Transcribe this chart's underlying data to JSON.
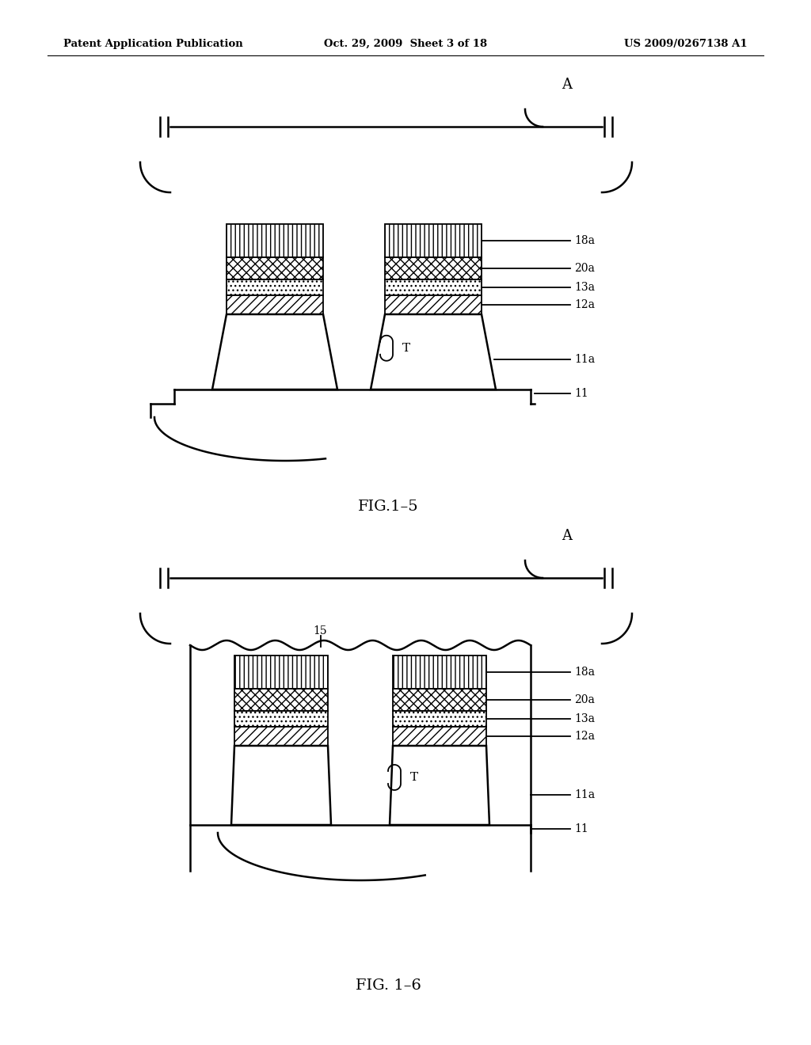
{
  "bg_color": "#ffffff",
  "header_left": "Patent Application Publication",
  "header_mid": "Oct. 29, 2009  Sheet 3 of 18",
  "header_right": "US 2009/0267138 A1",
  "fig1_5_label": "FIG.1–5",
  "fig1_6_label": "FIG. 1–6"
}
